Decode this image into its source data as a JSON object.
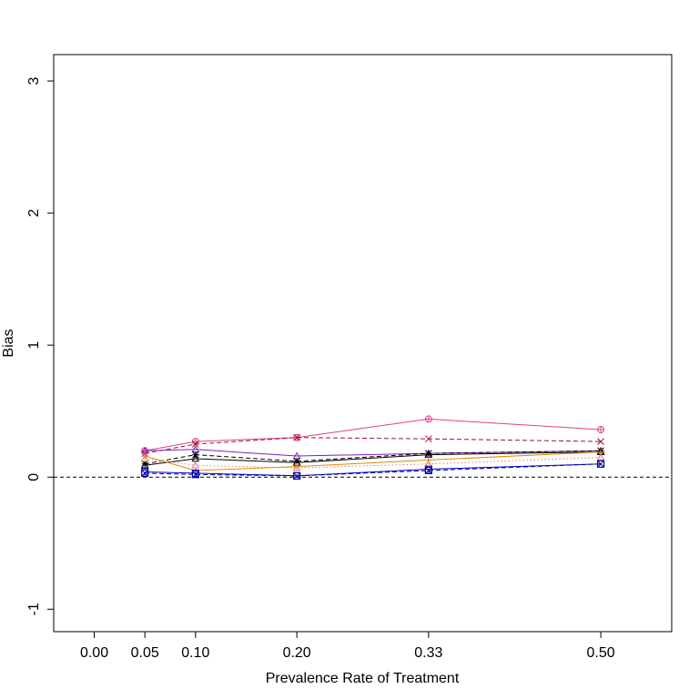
{
  "chart_data": {
    "type": "line",
    "title": "",
    "xlabel": "Prevalence Rate of Treatment",
    "ylabel": "Bias",
    "xlim": [
      -0.04,
      0.57
    ],
    "ylim": [
      -1.17,
      3.2
    ],
    "x_ticks": [
      0.0,
      0.05,
      0.1,
      0.2,
      0.33,
      0.5
    ],
    "x_tick_labels": [
      "0.00",
      "0.05",
      "0.10",
      "0.20",
      "0.33",
      "0.50"
    ],
    "y_ticks": [
      -1,
      0,
      1,
      2,
      3
    ],
    "y_tick_labels": [
      "-1",
      "0",
      "1",
      "2",
      "3"
    ],
    "reference_line": {
      "y": 0,
      "style": "dashed",
      "color": "#000000"
    },
    "legend": "none",
    "grid": false,
    "x": [
      0.05,
      0.1,
      0.2,
      0.33,
      0.5
    ],
    "series": [
      {
        "values": [
          0.2,
          0.27,
          0.3,
          0.44,
          0.36
        ],
        "color": "#e0408c",
        "dash": "solid",
        "marker": "circle-plus"
      },
      {
        "values": [
          0.18,
          0.25,
          0.3,
          0.29,
          0.27
        ],
        "color": "#a01030",
        "dash": "dashed",
        "marker": "x"
      },
      {
        "values": [
          0.2,
          0.21,
          0.16,
          0.18,
          0.2
        ],
        "color": "#7a20c0",
        "dash": "solid",
        "marker": "triangle"
      },
      {
        "values": [
          0.1,
          0.17,
          0.12,
          0.18,
          0.2
        ],
        "color": "#000000",
        "dash": "dashed",
        "marker": "star"
      },
      {
        "values": [
          0.09,
          0.14,
          0.11,
          0.17,
          0.19
        ],
        "color": "#000000",
        "dash": "solid",
        "marker": "triangle"
      },
      {
        "values": [
          0.16,
          0.05,
          0.08,
          0.13,
          0.19
        ],
        "color": "#e08a00",
        "dash": "solid",
        "marker": "plus"
      },
      {
        "values": [
          0.14,
          0.09,
          0.07,
          0.1,
          0.15
        ],
        "color": "#d08080",
        "dash": "dotted",
        "marker": "triangle"
      },
      {
        "values": [
          0.04,
          0.03,
          0.01,
          0.06,
          0.1
        ],
        "color": "#0000d0",
        "dash": "solid",
        "marker": "square"
      },
      {
        "values": [
          0.03,
          0.02,
          0.01,
          0.05,
          0.1
        ],
        "color": "#0000a0",
        "dash": "dashed",
        "marker": "square-x"
      }
    ]
  }
}
